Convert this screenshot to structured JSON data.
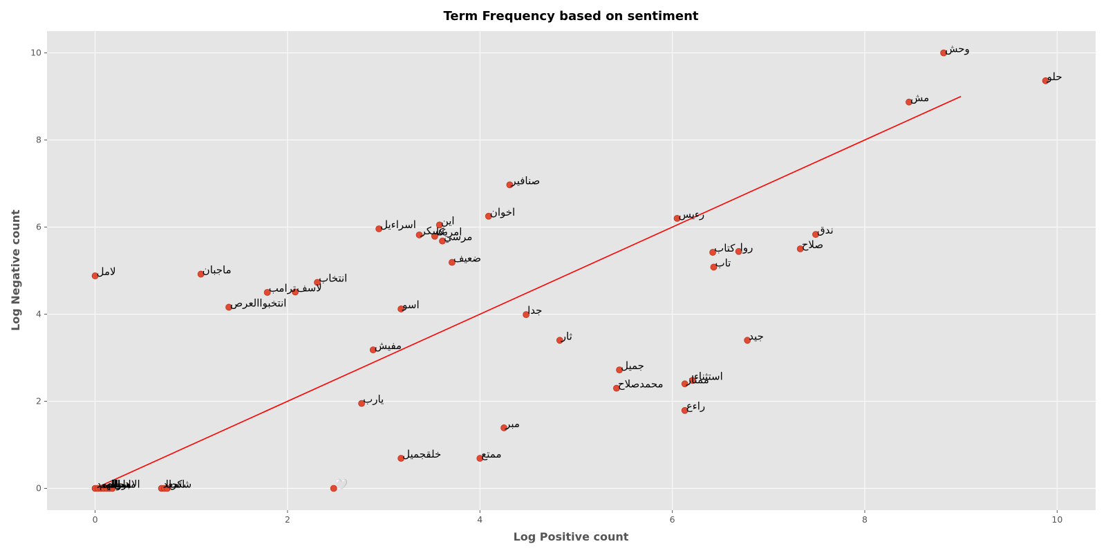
{
  "chart_data": {
    "type": "scatter",
    "title": "Term Frequency based on sentiment",
    "xlabel": "Log Positive count",
    "ylabel": "Log Negative count",
    "xlim": [
      -0.5,
      10.4
    ],
    "ylim": [
      -0.5,
      10.5
    ],
    "xticks": [
      0,
      2,
      4,
      6,
      8,
      10
    ],
    "yticks": [
      0,
      2,
      4,
      6,
      8,
      10
    ],
    "grid": true,
    "background": "#e5e5e5",
    "point_color": "#e24a33",
    "line_color": "#ff0000",
    "reference_line": {
      "x": [
        0,
        9
      ],
      "y": [
        0,
        9
      ]
    },
    "points": [
      {
        "x": 8.82,
        "y": 10.0,
        "label": "وحش"
      },
      {
        "x": 9.88,
        "y": 9.36,
        "label": "حلو"
      },
      {
        "x": 8.46,
        "y": 8.87,
        "label": "مش"
      },
      {
        "x": 4.31,
        "y": 6.97,
        "label": "صنافير"
      },
      {
        "x": 4.09,
        "y": 6.25,
        "label": "اخوان"
      },
      {
        "x": 6.05,
        "y": 6.2,
        "label": "رءيس"
      },
      {
        "x": 3.58,
        "y": 6.05,
        "label": "اين"
      },
      {
        "x": 2.95,
        "y": 5.96,
        "label": "اسراءيل"
      },
      {
        "x": 3.37,
        "y": 5.82,
        "label": "عسكر"
      },
      {
        "x": 3.53,
        "y": 5.79,
        "label": "امريكا"
      },
      {
        "x": 3.61,
        "y": 5.68,
        "label": "مرسي"
      },
      {
        "x": 7.49,
        "y": 5.83,
        "label": "ندق"
      },
      {
        "x": 6.42,
        "y": 5.42,
        "label": "كتاب"
      },
      {
        "x": 6.69,
        "y": 5.44,
        "label": "روا"
      },
      {
        "x": 7.33,
        "y": 5.5,
        "label": "صلاح"
      },
      {
        "x": 3.71,
        "y": 5.19,
        "label": "ضعيف"
      },
      {
        "x": 6.43,
        "y": 5.08,
        "label": "تاب"
      },
      {
        "x": 0.0,
        "y": 4.88,
        "label": "لامل"
      },
      {
        "x": 1.1,
        "y": 4.92,
        "label": "ماجبان"
      },
      {
        "x": 2.31,
        "y": 4.73,
        "label": "انتخاب"
      },
      {
        "x": 1.79,
        "y": 4.5,
        "label": "ترامب"
      },
      {
        "x": 2.08,
        "y": 4.51,
        "label": "لاسف"
      },
      {
        "x": 1.39,
        "y": 4.16,
        "label": "انتخبواالعرص"
      },
      {
        "x": 3.18,
        "y": 4.12,
        "label": "اسو"
      },
      {
        "x": 4.48,
        "y": 3.99,
        "label": "جدا"
      },
      {
        "x": 4.83,
        "y": 3.4,
        "label": "ثار"
      },
      {
        "x": 6.78,
        "y": 3.4,
        "label": "جيد"
      },
      {
        "x": 2.89,
        "y": 3.18,
        "label": "مفيش"
      },
      {
        "x": 5.45,
        "y": 2.72,
        "label": "جميل"
      },
      {
        "x": 6.21,
        "y": 2.48,
        "label": "استثناء"
      },
      {
        "x": 6.13,
        "y": 2.4,
        "label": "ممتاز"
      },
      {
        "x": 5.42,
        "y": 2.3,
        "label": "محمدصلاح"
      },
      {
        "x": 2.77,
        "y": 1.95,
        "label": "يارب"
      },
      {
        "x": 6.13,
        "y": 1.79,
        "label": "راءع"
      },
      {
        "x": 4.25,
        "y": 1.39,
        "label": "مبر"
      },
      {
        "x": 3.18,
        "y": 0.69,
        "label": "خلقجميل"
      },
      {
        "x": 4.0,
        "y": 0.69,
        "label": "ممتع"
      },
      {
        "x": 2.48,
        "y": 0.0,
        "label": "🤍"
      },
      {
        "x": 0.69,
        "y": 0.0,
        "label": "اسعد"
      },
      {
        "x": 0.72,
        "y": 0.0,
        "label": "تحيا"
      },
      {
        "x": 0.75,
        "y": 0.0,
        "label": "شكرا"
      },
      {
        "x": 0.0,
        "y": 0.0,
        "label": "الحمد"
      },
      {
        "x": 0.03,
        "y": 0.0,
        "label": "اللهم"
      },
      {
        "x": 0.06,
        "y": 0.0,
        "label": "سعاده"
      },
      {
        "x": 0.09,
        "y": 0.0,
        "label": "الله"
      },
      {
        "x": 0.12,
        "y": 0.0,
        "label": "مبروك"
      },
      {
        "x": 0.15,
        "y": 0.0,
        "label": "اتحاد"
      },
      {
        "x": 0.18,
        "y": 0.0,
        "label": "الاهلي"
      }
    ]
  }
}
